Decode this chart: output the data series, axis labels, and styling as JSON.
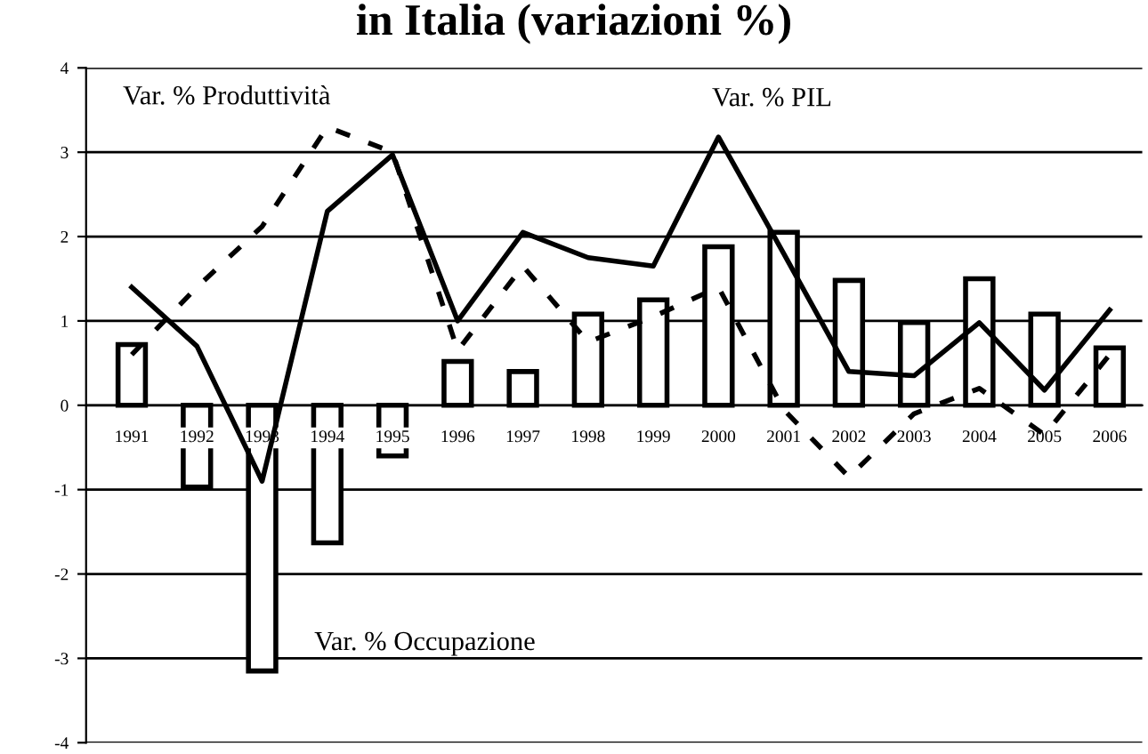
{
  "chart_data": {
    "type": "bar",
    "title": "in Italia (variazioni %)",
    "categories": [
      "1991",
      "1992",
      "1993",
      "1994",
      "1995",
      "1996",
      "1997",
      "1998",
      "1999",
      "2000",
      "2001",
      "2002",
      "2003",
      "2004",
      "2005",
      "2006"
    ],
    "series": [
      {
        "name": "Var. % Occupazione",
        "color": "#000000",
        "values": [
          0.72,
          -0.97,
          -3.15,
          -1.63,
          -0.6,
          0.52,
          0.4,
          1.08,
          1.25,
          1.88,
          2.05,
          1.48,
          0.98,
          1.5,
          1.08,
          0.68
        ]
      },
      {
        "name": "Var. % PIL",
        "type": "line",
        "line_style": "solid",
        "color": "#000000",
        "values": [
          1.4,
          0.7,
          -0.9,
          2.3,
          2.97,
          1.0,
          2.05,
          1.75,
          1.65,
          3.18,
          1.8,
          0.4,
          0.35,
          0.98,
          0.18,
          1.13
        ]
      },
      {
        "name": "Var. % Produttività",
        "type": "line",
        "line_style": "dashed",
        "color": "#000000",
        "values": [
          0.6,
          1.4,
          2.12,
          3.3,
          3.0,
          0.65,
          1.65,
          0.75,
          1.05,
          1.4,
          -0.05,
          -0.85,
          -0.1,
          0.2,
          -0.35,
          0.6
        ]
      }
    ],
    "ylim": [
      -4,
      4
    ],
    "yticks": [
      -4,
      -3,
      -2,
      -1,
      0,
      1,
      2,
      3,
      4
    ],
    "grid": "y",
    "legend": false,
    "marker": "none"
  }
}
